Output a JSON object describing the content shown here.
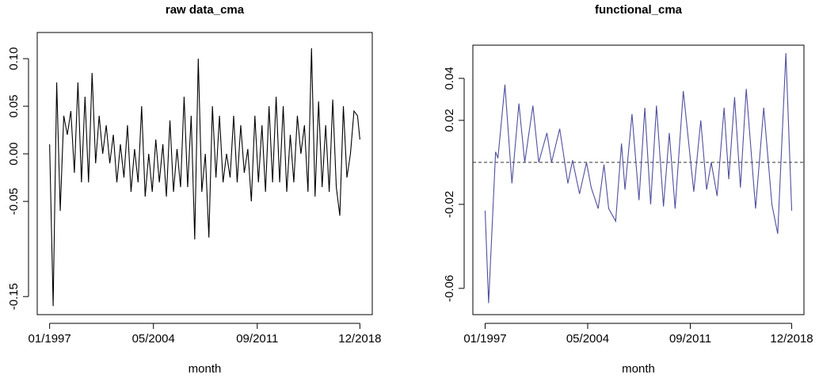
{
  "chart_data": [
    {
      "type": "line",
      "title": "raw data_cma",
      "x_label": "month",
      "color": "#000000",
      "x": [
        1,
        4,
        7,
        10,
        13,
        16,
        19,
        22,
        25,
        28,
        31,
        34,
        37,
        40,
        43,
        46,
        49,
        52,
        55,
        58,
        61,
        64,
        67,
        70,
        73,
        76,
        79,
        82,
        85,
        88,
        91,
        94,
        97,
        100,
        103,
        106,
        109,
        112,
        115,
        118,
        121,
        124,
        127,
        130,
        133,
        136,
        139,
        142,
        145,
        148,
        151,
        154,
        157,
        160,
        163,
        166,
        169,
        172,
        175,
        178,
        181,
        184,
        187,
        190,
        193,
        196,
        199,
        202,
        205,
        208,
        211,
        214,
        217,
        220,
        223,
        226,
        229,
        232,
        235,
        238,
        241,
        244,
        247,
        250,
        253,
        256,
        259,
        262,
        264
      ],
      "values": [
        0.01,
        -0.16,
        0.075,
        -0.06,
        0.04,
        0.02,
        0.045,
        -0.02,
        0.075,
        -0.03,
        0.06,
        -0.03,
        0.085,
        -0.01,
        0.04,
        0.0,
        0.03,
        -0.01,
        0.02,
        -0.03,
        0.01,
        -0.025,
        0.03,
        -0.04,
        0.005,
        -0.03,
        0.05,
        -0.045,
        0.0,
        -0.04,
        0.015,
        -0.03,
        0.01,
        -0.045,
        0.035,
        -0.04,
        0.005,
        -0.035,
        0.06,
        -0.035,
        0.04,
        -0.09,
        0.1,
        -0.04,
        0.0,
        -0.088,
        0.05,
        -0.025,
        0.04,
        -0.03,
        0.0,
        -0.025,
        0.04,
        -0.03,
        0.03,
        -0.02,
        0.005,
        -0.05,
        0.04,
        -0.03,
        0.03,
        -0.04,
        0.05,
        -0.03,
        0.06,
        -0.03,
        0.05,
        -0.04,
        0.02,
        -0.03,
        0.04,
        0.0,
        0.03,
        -0.04,
        0.111,
        -0.045,
        0.055,
        -0.035,
        0.03,
        -0.04,
        0.057,
        -0.035,
        -0.065,
        0.05,
        -0.025,
        0.0,
        0.045,
        0.04,
        0.015
      ],
      "xlim": [
        -9.5,
        274.5
      ],
      "xticks": [
        {
          "value": 1,
          "label": "01/1997"
        },
        {
          "value": 89,
          "label": "05/2004"
        },
        {
          "value": 177,
          "label": "09/2011"
        },
        {
          "value": 264,
          "label": "12/2018"
        }
      ],
      "ylim": [
        -0.169,
        0.1275
      ],
      "yticks": [
        {
          "value": -0.15,
          "label": "-0.15"
        },
        {
          "value": -0.05,
          "label": "-0.05"
        },
        {
          "value": 0,
          "label": "0.00"
        },
        {
          "value": 0.05,
          "label": "0.05"
        },
        {
          "value": 0.1,
          "label": "0.10"
        }
      ]
    },
    {
      "type": "line",
      "title": "functional_cma",
      "x_label": "month",
      "color": "#4f4f9e",
      "hline": 0,
      "x": [
        1,
        4,
        10,
        12,
        18,
        24,
        30,
        35,
        42,
        47,
        54,
        58,
        65,
        72,
        76,
        82,
        88,
        92,
        98,
        103,
        107,
        113,
        118,
        121,
        127,
        133,
        138,
        143,
        148,
        154,
        159,
        164,
        171,
        180,
        186,
        191,
        195,
        200,
        206,
        210,
        215,
        220,
        225,
        233,
        240,
        247,
        252,
        259,
        264
      ],
      "values": [
        -0.023,
        -0.067,
        0.005,
        0.002,
        0.037,
        -0.01,
        0.028,
        0,
        0.027,
        0,
        0.014,
        0,
        0.016,
        -0.01,
        0.001,
        -0.015,
        0,
        -0.012,
        -0.022,
        -0.001,
        -0.022,
        -0.028,
        0.009,
        -0.013,
        0.023,
        -0.018,
        0.026,
        -0.02,
        0.027,
        -0.021,
        0.014,
        -0.022,
        0.034,
        -0.014,
        0.02,
        -0.013,
        0,
        -0.016,
        0.026,
        -0.008,
        0.031,
        -0.012,
        0.035,
        -0.022,
        0.026,
        -0.02,
        -0.034,
        0.052,
        -0.023
      ],
      "xlim": [
        -9.5,
        274.5
      ],
      "xticks": [
        {
          "value": 1,
          "label": "01/1997"
        },
        {
          "value": 89,
          "label": "05/2004"
        },
        {
          "value": 177,
          "label": "09/2011"
        },
        {
          "value": 264,
          "label": "12/2018"
        }
      ],
      "ylim": [
        -0.0725,
        0.0558
      ],
      "yticks": [
        {
          "value": -0.06,
          "label": "-0.06"
        },
        {
          "value": -0.02,
          "label": "-0.02"
        },
        {
          "value": 0.02,
          "label": "0.02"
        },
        {
          "value": 0.04,
          "label": "0.04"
        }
      ]
    }
  ]
}
